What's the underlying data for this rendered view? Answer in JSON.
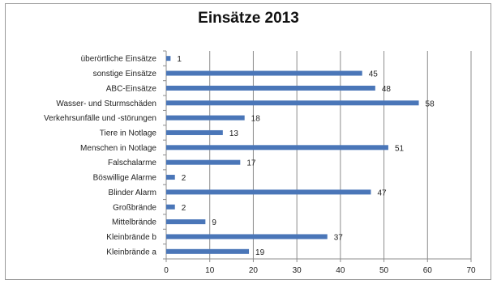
{
  "chart_data": {
    "type": "bar",
    "orientation": "horizontal",
    "title": "Einsätze 2013",
    "categories": [
      "überörtliche Einsätze",
      "sonstige Einsätze",
      "ABC-Einsätze",
      "Wasser- und Sturmschäden",
      "Verkehrsunfälle und -störungen",
      "Tiere in Notlage",
      "Menschen in Notlage",
      "Falschalarme",
      "Böswillige Alarme",
      "Blinder Alarm",
      "Großbrände",
      "Mittelbrände",
      "Kleinbrände b",
      "Kleinbrände a"
    ],
    "values": [
      1,
      45,
      48,
      58,
      18,
      13,
      51,
      17,
      2,
      47,
      2,
      9,
      37,
      19
    ],
    "data_labels": [
      "1",
      "45",
      "48",
      "58",
      "18",
      "13",
      "51",
      "17",
      "2",
      "47",
      "2",
      "9",
      "37",
      "19"
    ],
    "xlim": [
      0,
      70
    ],
    "x_ticks": [
      "0",
      "10",
      "20",
      "30",
      "40",
      "50",
      "60",
      "70"
    ],
    "grid": "vertical",
    "bar_color": "#4a76b8"
  }
}
